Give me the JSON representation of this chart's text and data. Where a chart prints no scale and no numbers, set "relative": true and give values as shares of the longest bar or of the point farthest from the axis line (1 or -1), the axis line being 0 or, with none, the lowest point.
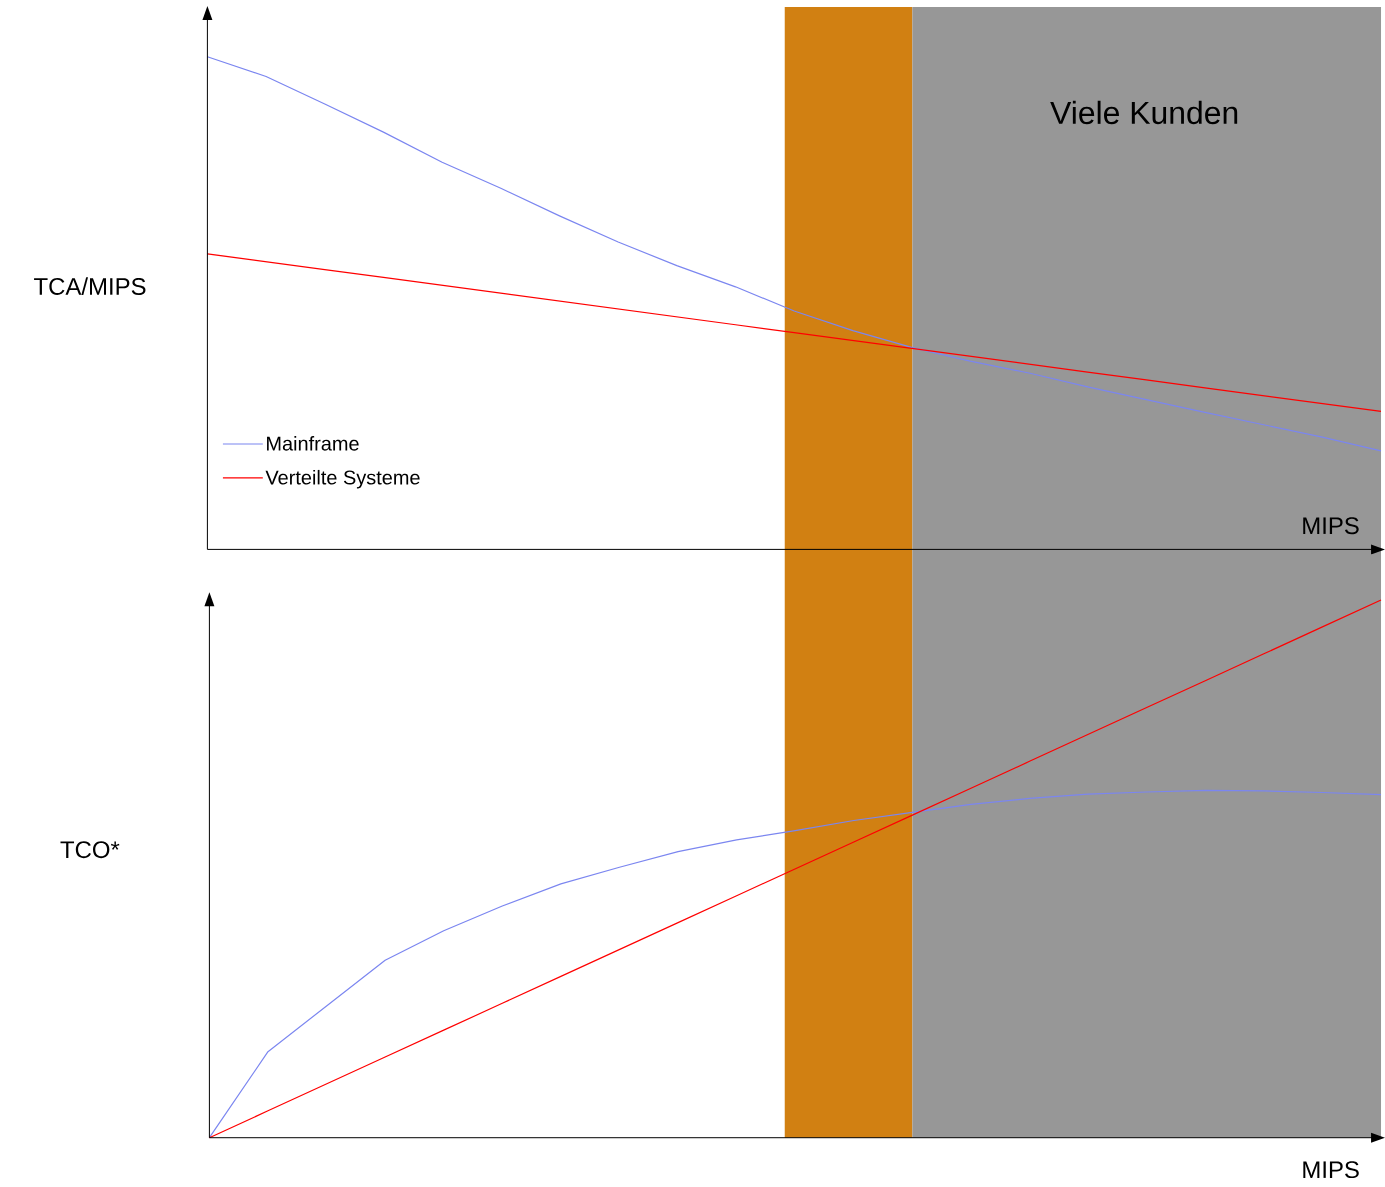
{
  "chart_data": [
    {
      "type": "line",
      "relative": true,
      "ylabel": "TCA/MIPS",
      "xlabel": "MIPS",
      "legend": "bottom left",
      "categories": [
        null,
        null,
        null,
        null,
        null,
        null,
        null,
        null,
        null,
        null,
        null,
        null,
        null,
        null,
        null,
        null,
        null,
        null,
        null,
        null,
        null
      ],
      "annotations": [
        "Viele Kunden"
      ],
      "series": [
        {
          "name": "Mainframe",
          "color": "#7b86f0",
          "values": [
            1.0,
            0.96,
            0.904,
            0.847,
            0.786,
            0.733,
            0.677,
            0.624,
            0.576,
            0.533,
            0.484,
            0.444,
            0.41,
            0.382,
            0.358,
            0.33,
            0.304,
            0.278,
            0.253,
            0.228,
            0.2
          ]
        },
        {
          "name": "Verteilte Systeme",
          "color": "#ff0000",
          "values": [
            0.6,
            0.584,
            0.568,
            0.552,
            0.536,
            0.52,
            0.504,
            0.488,
            0.472,
            0.456,
            0.44,
            0.424,
            0.408,
            0.392,
            0.376,
            0.36,
            0.344,
            0.328,
            0.312,
            0.296,
            0.28
          ]
        }
      ]
    },
    {
      "type": "line",
      "relative": true,
      "ylabel": "TCO*",
      "xlabel": "MIPS",
      "categories": [
        null,
        null,
        null,
        null,
        null,
        null,
        null,
        null,
        null,
        null,
        null,
        null,
        null,
        null,
        null,
        null,
        null,
        null,
        null,
        null,
        null
      ],
      "series": [
        {
          "color": "#7b86f0",
          "values": [
            0,
            0.16,
            0.245,
            0.33,
            0.385,
            0.431,
            0.472,
            0.503,
            0.532,
            0.554,
            0.571,
            0.59,
            0.605,
            0.62,
            0.631,
            0.639,
            0.643,
            0.646,
            0.645,
            0.642,
            0.638
          ]
        },
        {
          "color": "#ff0000",
          "values": [
            0,
            0.05,
            0.1,
            0.15,
            0.2,
            0.25,
            0.3,
            0.35,
            0.4,
            0.45,
            0.5,
            0.55,
            0.6,
            0.65,
            0.7,
            0.75,
            0.8,
            0.85,
            0.9,
            0.95,
            1.0
          ]
        }
      ]
    }
  ]
}
